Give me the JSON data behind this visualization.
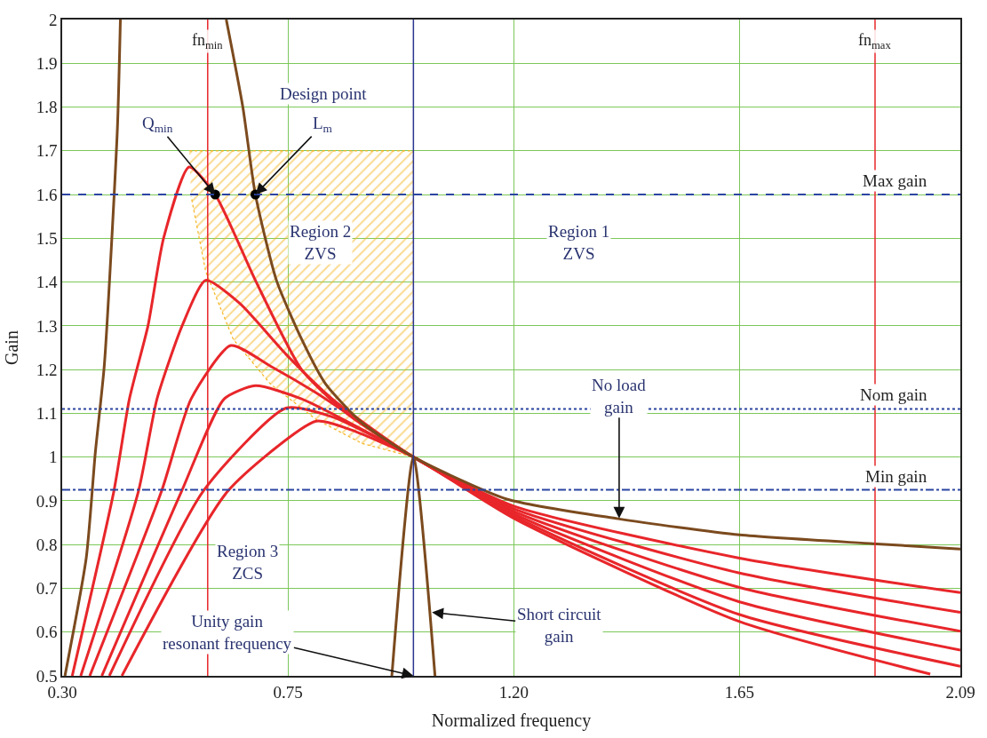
{
  "chart_data": {
    "type": "line",
    "xlabel": "Normalized frequency",
    "ylabel": "Gain",
    "xlim": [
      0.3,
      2.09
    ],
    "xticks": [
      {
        "value": 0.3,
        "label": "0.30"
      },
      {
        "value": 0.75,
        "label": "0.75"
      },
      {
        "value": 1.2,
        "label": "1.20"
      },
      {
        "value": 1.65,
        "label": "1.65"
      },
      {
        "value": 2.09,
        "label": "2.09"
      }
    ],
    "ylim": [
      0.5,
      2
    ],
    "yticks": [
      0.5,
      0.6,
      0.7,
      0.8,
      0.9,
      1,
      1.1,
      1.2,
      1.3,
      1.4,
      1.5,
      1.6,
      1.7,
      1.8,
      1.9,
      2
    ],
    "grid": true,
    "series": [
      {
        "type": "area",
        "color": "#f5b41e",
        "x": [
          0.553,
          1.0,
          1.0,
          0.898,
          0.806,
          0.715,
          0.641,
          0.586,
          0.557
        ],
        "values": [
          1.7,
          1.7,
          1.0,
          1.031,
          1.086,
          1.167,
          1.269,
          1.424,
          1.596
        ]
      },
      {
        "color": "#e8262a",
        "x": [
          0.32,
          0.403,
          0.434,
          0.471,
          0.502,
          0.553,
          0.605,
          0.685,
          0.777,
          0.869,
          1.0,
          1.2,
          1.65,
          2.09
        ],
        "values": [
          0.5,
          0.922,
          1.133,
          1.3,
          1.5,
          1.663,
          1.6,
          1.404,
          1.2,
          1.098,
          1.0,
          0.888,
          0.769,
          0.69
        ]
      },
      {
        "color": "#e8262a",
        "x": [
          0.337,
          0.452,
          0.489,
          0.539,
          0.586,
          0.654,
          0.746,
          0.838,
          1.0,
          1.2,
          1.65,
          2.09
        ],
        "values": [
          0.5,
          0.922,
          1.133,
          1.3,
          1.404,
          1.351,
          1.235,
          1.133,
          1.0,
          0.882,
          0.735,
          0.645
        ]
      },
      {
        "color": "#e8262a",
        "x": [
          0.355,
          0.498,
          0.557,
          0.636,
          0.715,
          0.806,
          1.0,
          1.2,
          1.65,
          2.09
        ],
        "values": [
          0.5,
          0.922,
          1.133,
          1.255,
          1.208,
          1.147,
          1.0,
          0.876,
          0.702,
          0.602
        ]
      },
      {
        "color": "#e8262a",
        "x": [
          0.379,
          0.538,
          0.623,
          0.685,
          0.777,
          1.0,
          1.2,
          1.65,
          2.09
        ],
        "values": [
          0.5,
          0.922,
          1.133,
          1.163,
          1.133,
          1.0,
          0.87,
          0.669,
          0.559
        ]
      },
      {
        "color": "#e8262a",
        "x": [
          0.394,
          0.581,
          0.746,
          0.838,
          1.0,
          1.2,
          1.65,
          2.09
        ],
        "values": [
          0.5,
          0.922,
          1.112,
          1.092,
          1.0,
          0.865,
          0.64,
          0.522
        ]
      },
      {
        "color": "#e8262a",
        "x": [
          0.419,
          0.63,
          0.806,
          0.869,
          1.0,
          1.2,
          1.65,
          2.03
        ],
        "values": [
          0.5,
          0.922,
          1.082,
          1.065,
          1.0,
          0.86,
          0.624,
          0.504
        ]
      },
      {
        "color": "#7b4a1e",
        "x": [
          0.3055,
          0.348,
          0.366,
          0.384,
          0.41,
          0.416
        ],
        "values": [
          0.5,
          0.77,
          1.01,
          1.21,
          1.75,
          2.0
        ]
      },
      {
        "color": "#7b4a1e",
        "x": [
          0.627,
          0.66,
          0.685,
          0.727,
          0.777,
          0.825,
          0.898,
          1.0,
          1.186,
          1.408,
          1.65,
          1.916,
          2.09
        ],
        "values": [
          2.0,
          1.8,
          1.6,
          1.404,
          1.27,
          1.167,
          1.078,
          1.0,
          0.904,
          0.859,
          0.822,
          0.802,
          0.79
        ]
      },
      {
        "color": "#7b4a1e",
        "x": [
          0.957,
          1.0,
          1.043
        ],
        "values": [
          0.5,
          1.0,
          0.5
        ]
      },
      {
        "type": "scatter",
        "color": "#000000",
        "marker": "circle",
        "x": [
          0.605,
          0.685
        ],
        "values": [
          1.6,
          1.6
        ]
      }
    ],
    "ref_lines": [
      {
        "axis": "x",
        "value": 0.59,
        "label": "fn$_{min}$",
        "color": "#e8262a",
        "line_style": "solid"
      },
      {
        "axis": "x",
        "value": 1.92,
        "label": "fn$_{max}$",
        "color": "#e8262a",
        "line_style": "solid"
      },
      {
        "axis": "x",
        "value": 1.0,
        "color": "#2b3590",
        "line_style": "solid"
      },
      {
        "axis": "y",
        "value": 1.6,
        "label": "Max gain",
        "color": "#2b45a0",
        "line_style": "dashed"
      },
      {
        "axis": "y",
        "value": 1.11,
        "label": "Nom gain",
        "color": "#2b45a0",
        "line_style": "dotted"
      },
      {
        "axis": "y",
        "value": 0.925,
        "label": "Min gain",
        "color": "#2b45a0",
        "line_style": "dashdot"
      }
    ],
    "annotations": [
      "Design point",
      {
        "text": "Q$_{min}$",
        "x": 0.605,
        "y": 1.6
      },
      {
        "text": "L$_{m}$",
        "x": 0.685,
        "y": 1.6
      },
      "Region 2\nZVS",
      "Region 1\nZVS",
      {
        "text": "No load\ngain",
        "x": 1.41,
        "y": 0.86
      },
      "Region 3\nZCS",
      {
        "text": "Unity gain\nresonant frequency",
        "x": 1.0,
        "y": 0.5
      },
      {
        "text": "Short circuit\ngain",
        "x": 1.037,
        "y": 0.645
      }
    ]
  }
}
